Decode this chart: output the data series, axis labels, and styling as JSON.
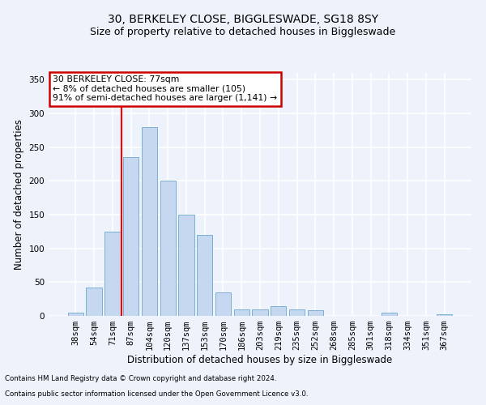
{
  "title1": "30, BERKELEY CLOSE, BIGGLESWADE, SG18 8SY",
  "title2": "Size of property relative to detached houses in Biggleswade",
  "xlabel": "Distribution of detached houses by size in Biggleswade",
  "ylabel": "Number of detached properties",
  "categories": [
    "38sqm",
    "54sqm",
    "71sqm",
    "87sqm",
    "104sqm",
    "120sqm",
    "137sqm",
    "153sqm",
    "170sqm",
    "186sqm",
    "203sqm",
    "219sqm",
    "235sqm",
    "252sqm",
    "268sqm",
    "285sqm",
    "301sqm",
    "318sqm",
    "334sqm",
    "351sqm",
    "367sqm"
  ],
  "values": [
    5,
    42,
    125,
    235,
    280,
    200,
    150,
    120,
    35,
    10,
    10,
    15,
    10,
    8,
    0,
    0,
    0,
    5,
    0,
    0,
    2
  ],
  "bar_color": "#c5d8f0",
  "bar_edge_color": "#7bafd4",
  "red_line_index": 2.5,
  "annotation_text": "30 BERKELEY CLOSE: 77sqm\n← 8% of detached houses are smaller (105)\n91% of semi-detached houses are larger (1,141) →",
  "annotation_box_color": "#ffffff",
  "annotation_border_color": "#cc0000",
  "ylim": [
    0,
    360
  ],
  "yticks": [
    0,
    50,
    100,
    150,
    200,
    250,
    300,
    350
  ],
  "footer1": "Contains HM Land Registry data © Crown copyright and database right 2024.",
  "footer2": "Contains public sector information licensed under the Open Government Licence v3.0.",
  "background_color": "#edf2fb",
  "grid_color": "#ffffff",
  "title_fontsize": 10,
  "subtitle_fontsize": 9,
  "axis_label_fontsize": 8.5,
  "tick_fontsize": 7.5,
  "bar_width": 0.85
}
